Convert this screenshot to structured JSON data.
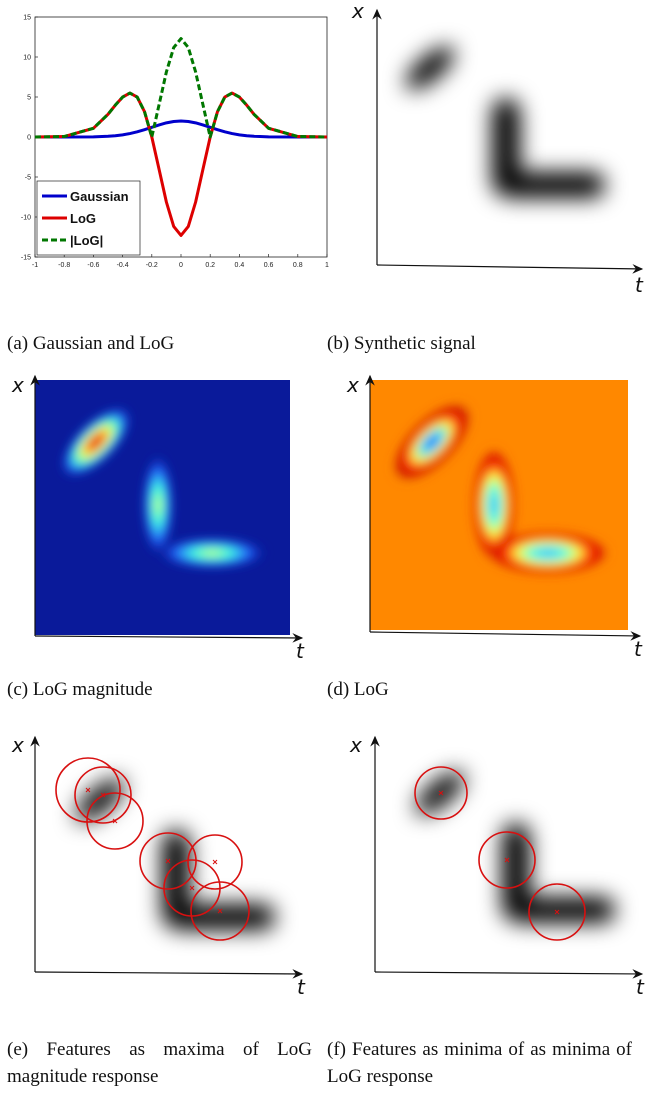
{
  "chart_data": {
    "type": "line",
    "x": [
      -1,
      -0.8,
      -0.6,
      -0.5,
      -0.45,
      -0.4,
      -0.35,
      -0.3,
      -0.25,
      -0.2,
      -0.15,
      -0.1,
      -0.05,
      0,
      0.05,
      0.1,
      0.15,
      0.2,
      0.25,
      0.3,
      0.35,
      0.4,
      0.45,
      0.5,
      0.6,
      0.8,
      1
    ],
    "series": [
      {
        "name": "Gaussian",
        "color": "#0000cc",
        "dashed": false,
        "values": [
          0,
          0,
          0.02,
          0.09,
          0.16,
          0.27,
          0.43,
          0.65,
          0.92,
          1.21,
          1.51,
          1.77,
          1.94,
          2,
          1.94,
          1.77,
          1.51,
          1.21,
          0.92,
          0.65,
          0.43,
          0.27,
          0.16,
          0.09,
          0.02,
          0,
          0
        ]
      },
      {
        "name": "LoG",
        "color": "#dd0000",
        "dashed": false,
        "values": [
          0,
          0.06,
          1.09,
          2.84,
          3.98,
          4.99,
          5.49,
          4.99,
          3.17,
          0,
          -4.06,
          -8.14,
          -11.18,
          -12.3,
          -11.18,
          -8.14,
          -4.06,
          0,
          3.17,
          4.99,
          5.49,
          4.99,
          3.98,
          2.84,
          1.09,
          0.06,
          0
        ]
      },
      {
        "name": "|LoG|",
        "color": "#007700",
        "dashed": true,
        "values": [
          0,
          0.06,
          1.09,
          2.84,
          3.98,
          4.99,
          5.49,
          4.99,
          3.17,
          0,
          4.06,
          8.14,
          11.18,
          12.3,
          11.18,
          8.14,
          4.06,
          0,
          3.17,
          4.99,
          5.49,
          4.99,
          3.98,
          2.84,
          1.09,
          0.06,
          0
        ]
      }
    ],
    "xlim": [
      -1,
      1
    ],
    "ylim": [
      -15,
      15
    ],
    "xticks": [
      -1,
      -0.8,
      -0.6,
      -0.4,
      -0.2,
      0,
      0.2,
      0.4,
      0.6,
      0.8,
      1
    ],
    "yticks": [
      -15,
      -10,
      -5,
      0,
      5,
      10,
      15
    ],
    "legend": "lower left"
  },
  "panels": [
    {
      "caption": "(a) Gaussian and LoG"
    },
    {
      "caption": "(b) Synthetic signal",
      "x_label": "x",
      "t_label": "t"
    },
    {
      "caption": "(c) LoG magnitude",
      "x_label": "x",
      "t_label": "t"
    },
    {
      "caption": "(d) LoG",
      "x_label": "x",
      "t_label": "t"
    },
    {
      "caption": "(e) Features as maxima of LoG magnitude response",
      "x_label": "x",
      "t_label": "t"
    },
    {
      "caption": "(f) Features as minima of as minima of LoG response",
      "x_label": "x",
      "t_label": "t"
    }
  ]
}
